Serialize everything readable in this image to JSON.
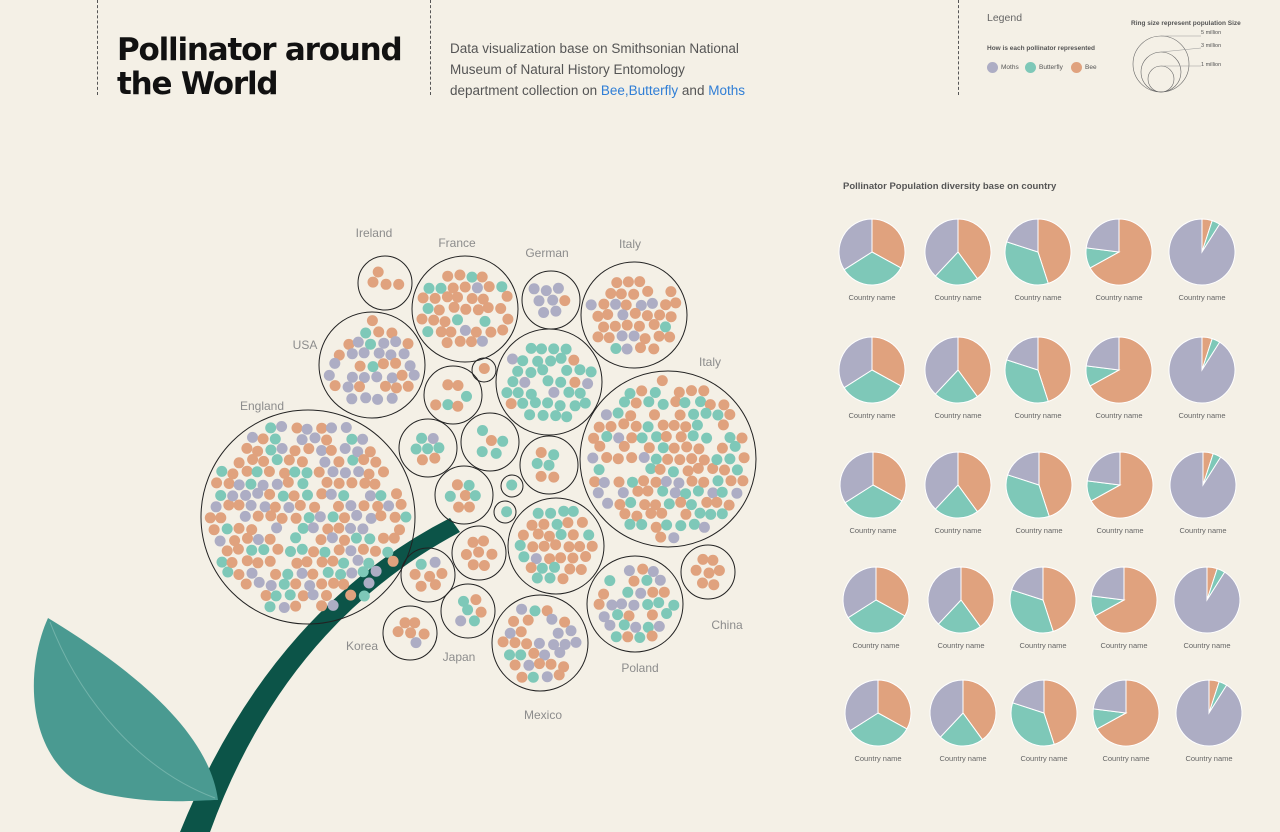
{
  "header": {
    "title": "Pollinator around the World",
    "subtitle_prefix": "Data visualization base on Smithsonian National Museum of Natural History Entomology department collection on ",
    "subtitle_bee": "Bee",
    "subtitle_sep": ",",
    "subtitle_butterfly": "Butterfly",
    "subtitle_and": " and ",
    "subtitle_moths": "Moths"
  },
  "legend": {
    "title": "Legend",
    "subtitle": "How is each pollinator represented",
    "items": [
      {
        "label": "Moths",
        "color": "#adadc4"
      },
      {
        "label": "Butterfly",
        "color": "#7ec8b8"
      },
      {
        "label": "Bee",
        "color": "#e0a27e"
      }
    ],
    "ring_title": "Ring size represent population Size",
    "ring_labels": [
      "5 million",
      "3 million",
      "1 million"
    ]
  },
  "colors": {
    "moths": "#adadc4",
    "butterfly": "#7ec8b8",
    "bee": "#e0a27e",
    "stem": "#0c5448",
    "leaf": "#4a9a91",
    "background": "#f4f0e6"
  },
  "chart_data": [
    {
      "type": "bubble-cluster",
      "labels": [
        "Ireland",
        "France",
        "German",
        "Italy",
        "USA",
        "Italy",
        "England",
        "Korea",
        "Japan",
        "Mexico",
        "Poland",
        "China"
      ]
    },
    {
      "type": "pie",
      "title": "Pollinator Population diversity base on country",
      "series_order": [
        "bee",
        "butterfly",
        "moths"
      ],
      "grid": [
        [
          {
            "label": "Country name",
            "values": [
              33,
              33,
              34
            ]
          },
          {
            "label": "Country name",
            "values": [
              40,
              22,
              38
            ]
          },
          {
            "label": "Country name",
            "values": [
              45,
              35,
              20
            ]
          },
          {
            "label": "Country name",
            "values": [
              67,
              10,
              23
            ]
          },
          {
            "label": "Country name",
            "values": [
              5,
              4,
              91
            ]
          }
        ],
        [
          {
            "label": "Country name",
            "values": [
              33,
              33,
              34
            ]
          },
          {
            "label": "Country name",
            "values": [
              40,
              22,
              38
            ]
          },
          {
            "label": "Country name",
            "values": [
              45,
              35,
              20
            ]
          },
          {
            "label": "Country name",
            "values": [
              67,
              10,
              23
            ]
          },
          {
            "label": "Country name",
            "values": [
              5,
              4,
              91
            ]
          }
        ],
        [
          {
            "label": "Country name",
            "values": [
              33,
              33,
              34
            ]
          },
          {
            "label": "Country name",
            "values": [
              40,
              22,
              38
            ]
          },
          {
            "label": "Country name",
            "values": [
              45,
              35,
              20
            ]
          },
          {
            "label": "Country name",
            "values": [
              67,
              10,
              23
            ]
          },
          {
            "label": "Country name",
            "values": [
              5,
              4,
              91
            ]
          }
        ],
        [
          {
            "label": "Country name",
            "values": [
              33,
              33,
              34
            ]
          },
          {
            "label": "Country name",
            "values": [
              40,
              22,
              38
            ]
          },
          {
            "label": "Country name",
            "values": [
              45,
              35,
              20
            ]
          },
          {
            "label": "Country name",
            "values": [
              67,
              10,
              23
            ]
          },
          {
            "label": "Country name",
            "values": [
              5,
              4,
              91
            ]
          }
        ],
        [
          {
            "label": "Country name",
            "values": [
              33,
              33,
              34
            ]
          },
          {
            "label": "Country name",
            "values": [
              40,
              22,
              38
            ]
          },
          {
            "label": "Country name",
            "values": [
              45,
              35,
              20
            ]
          },
          {
            "label": "Country name",
            "values": [
              67,
              10,
              23
            ]
          },
          {
            "label": "Country name",
            "values": [
              5,
              4,
              91
            ]
          }
        ]
      ]
    }
  ]
}
